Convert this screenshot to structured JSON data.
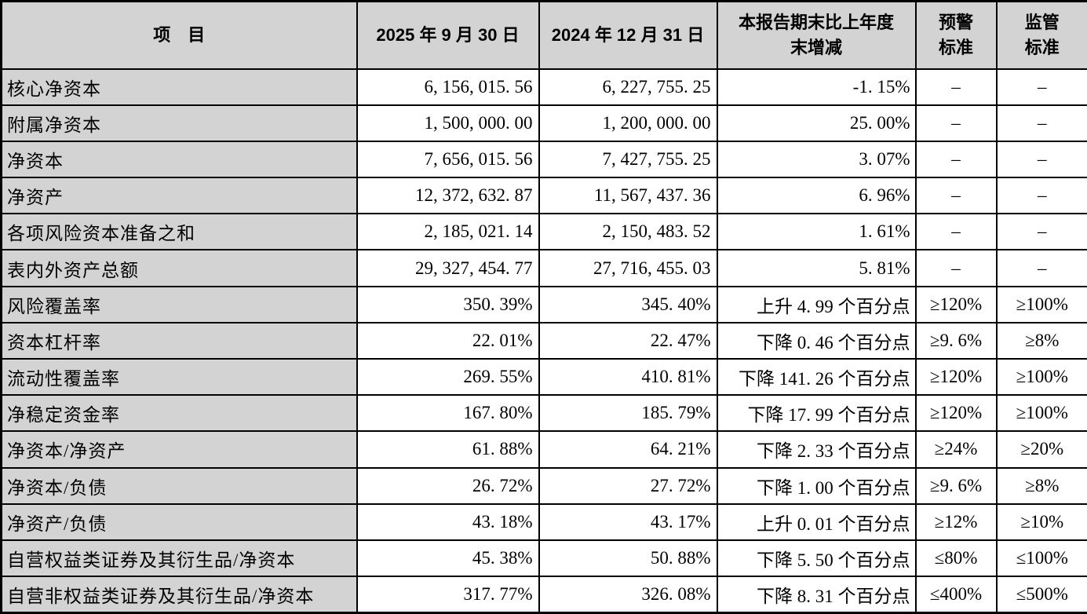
{
  "colors": {
    "header_bg": "#d3d3d3",
    "item_column_bg": "#d3d3d3",
    "cell_bg": "#ffffff",
    "border": "#000000",
    "text": "#000000"
  },
  "table": {
    "columns": [
      {
        "key": "item",
        "label": "项　目"
      },
      {
        "key": "v2025",
        "label": "2025 年 9 月 30 日"
      },
      {
        "key": "v2024",
        "label": "2024 年 12 月 31 日"
      },
      {
        "key": "change",
        "label": "本报告期末比上年度\n末增减"
      },
      {
        "key": "warning",
        "label": "预警\n标准"
      },
      {
        "key": "regulatory",
        "label": "监管\n标准"
      }
    ],
    "rows": [
      {
        "item": "核心净资本",
        "v2025": "6, 156, 015. 56",
        "v2024": "6, 227, 755. 25",
        "change": "-1. 15%",
        "warning": "–",
        "regulatory": "–"
      },
      {
        "item": "附属净资本",
        "v2025": "1, 500, 000. 00",
        "v2024": "1, 200, 000. 00",
        "change": "25. 00%",
        "warning": "–",
        "regulatory": "–"
      },
      {
        "item": "净资本",
        "v2025": "7, 656, 015. 56",
        "v2024": "7, 427, 755. 25",
        "change": "3. 07%",
        "warning": "–",
        "regulatory": "–"
      },
      {
        "item": "净资产",
        "v2025": "12, 372, 632. 87",
        "v2024": "11, 567, 437. 36",
        "change": "6. 96%",
        "warning": "–",
        "regulatory": "–"
      },
      {
        "item": "各项风险资本准备之和",
        "v2025": "2, 185, 021. 14",
        "v2024": "2, 150, 483. 52",
        "change": "1. 61%",
        "warning": "–",
        "regulatory": "–"
      },
      {
        "item": "表内外资产总额",
        "v2025": "29, 327, 454. 77",
        "v2024": "27, 716, 455. 03",
        "change": "5. 81%",
        "warning": "–",
        "regulatory": "–"
      },
      {
        "item": "风险覆盖率",
        "v2025": "350. 39%",
        "v2024": "345. 40%",
        "change": "上升 4. 99 个百分点",
        "warning": "≥120%",
        "regulatory": "≥100%"
      },
      {
        "item": "资本杠杆率",
        "v2025": "22. 01%",
        "v2024": "22. 47%",
        "change": "下降 0. 46 个百分点",
        "warning": "≥9. 6%",
        "regulatory": "≥8%"
      },
      {
        "item": "流动性覆盖率",
        "v2025": "269. 55%",
        "v2024": "410. 81%",
        "change": "下降 141. 26 个百分点",
        "warning": "≥120%",
        "regulatory": "≥100%"
      },
      {
        "item": "净稳定资金率",
        "v2025": "167. 80%",
        "v2024": "185. 79%",
        "change": "下降 17. 99 个百分点",
        "warning": "≥120%",
        "regulatory": "≥100%"
      },
      {
        "item": "净资本/净资产",
        "v2025": "61. 88%",
        "v2024": "64. 21%",
        "change": "下降 2. 33 个百分点",
        "warning": "≥24%",
        "regulatory": "≥20%"
      },
      {
        "item": "净资本/负债",
        "v2025": "26. 72%",
        "v2024": "27. 72%",
        "change": "下降 1. 00 个百分点",
        "warning": "≥9. 6%",
        "regulatory": "≥8%"
      },
      {
        "item": "净资产/负债",
        "v2025": "43. 18%",
        "v2024": "43. 17%",
        "change": "上升 0. 01 个百分点",
        "warning": "≥12%",
        "regulatory": "≥10%"
      },
      {
        "item": "自营权益类证券及其衍生品/净资本",
        "v2025": "45. 38%",
        "v2024": "50. 88%",
        "change": "下降 5. 50 个百分点",
        "warning": "≤80%",
        "regulatory": "≤100%"
      },
      {
        "item": "自营非权益类证券及其衍生品/净资本",
        "v2025": "317. 77%",
        "v2024": "326. 08%",
        "change": "下降 8. 31 个百分点",
        "warning": "≤400%",
        "regulatory": "≤500%"
      }
    ]
  }
}
